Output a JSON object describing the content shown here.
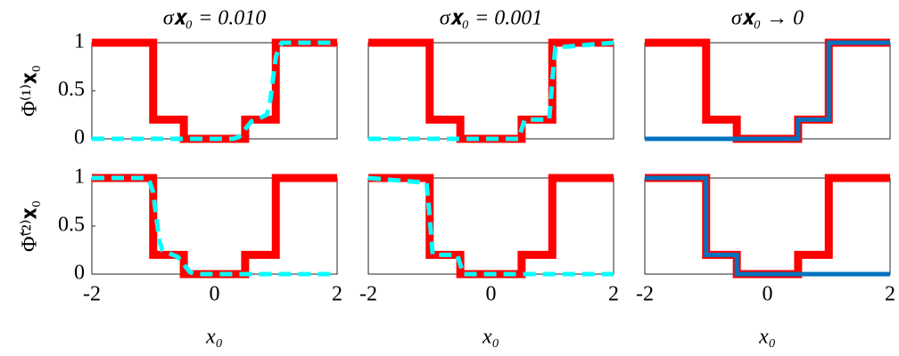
{
  "chart_data": [
    {
      "type": "line",
      "title": "σ𝐱₀ = 0.010",
      "ylabel": "Φ⁽¹⁾𝐱₀",
      "xlim": [
        -2,
        2
      ],
      "ylim": [
        0,
        1
      ],
      "yticks": [
        0,
        0.5,
        1
      ],
      "series": [
        {
          "color": "#ff0000",
          "linestyle": "solid",
          "x": [
            -2,
            -1,
            -1,
            -0.5,
            -0.5,
            0.5,
            0.5,
            1,
            1,
            2
          ],
          "values": [
            1,
            1,
            0.2,
            0.2,
            0,
            0,
            0.2,
            0.2,
            1,
            1
          ]
        },
        {
          "color": "#00ffff",
          "linestyle": "dashed",
          "x": [
            -2,
            0.3,
            0.4,
            0.5,
            0.6,
            0.75,
            0.85,
            0.9,
            0.95,
            1,
            1.05,
            1.1,
            2
          ],
          "values": [
            0,
            0,
            0.02,
            0.1,
            0.18,
            0.22,
            0.25,
            0.35,
            0.6,
            0.85,
            0.95,
            1,
            1
          ]
        }
      ]
    },
    {
      "type": "line",
      "title": "σ𝐱₀ = 0.001",
      "xlim": [
        -2,
        2
      ],
      "ylim": [
        0,
        1
      ],
      "series": [
        {
          "color": "#ff0000",
          "linestyle": "solid",
          "x": [
            -2,
            -1,
            -1,
            -0.5,
            -0.5,
            0.5,
            0.5,
            1,
            1,
            2
          ],
          "values": [
            1,
            1,
            0.2,
            0.2,
            0,
            0,
            0.2,
            0.2,
            1,
            1
          ]
        },
        {
          "color": "#00ffff",
          "linestyle": "dashed",
          "x": [
            -2,
            0.45,
            0.5,
            0.55,
            0.95,
            1,
            1.05,
            2
          ],
          "values": [
            0,
            0,
            0.1,
            0.2,
            0.2,
            0.6,
            0.95,
            1
          ]
        }
      ]
    },
    {
      "type": "line",
      "title": "σ𝐱₀ → 0",
      "xlim": [
        -2,
        2
      ],
      "ylim": [
        0,
        1
      ],
      "series": [
        {
          "color": "#ff0000",
          "linestyle": "solid",
          "x": [
            -2,
            -1,
            -1,
            -0.5,
            -0.5,
            0.5,
            0.5,
            1,
            1,
            2
          ],
          "values": [
            1,
            1,
            0.2,
            0.2,
            0,
            0,
            0.2,
            0.2,
            1,
            1
          ]
        },
        {
          "color": "#0072bd",
          "linestyle": "solid",
          "x": [
            -2,
            0.5,
            0.5,
            1,
            1,
            2
          ],
          "values": [
            0,
            0,
            0.2,
            0.2,
            1,
            1
          ]
        }
      ]
    },
    {
      "type": "line",
      "ylabel": "Φ̃⁽²⁾𝐱₀",
      "xlabel": "x₀",
      "xlim": [
        -2,
        2
      ],
      "ylim": [
        0,
        1
      ],
      "xticks": [
        -2,
        0,
        2
      ],
      "yticks": [
        0,
        0.5,
        1
      ],
      "series": [
        {
          "color": "#ff0000",
          "linestyle": "solid",
          "x": [
            -2,
            -1,
            -1,
            -0.5,
            -0.5,
            0.5,
            0.5,
            1,
            1,
            2
          ],
          "values": [
            1,
            1,
            0.2,
            0.2,
            0,
            0,
            0.2,
            0.2,
            1,
            1
          ]
        },
        {
          "color": "#00ffff",
          "linestyle": "dashed",
          "x": [
            -2,
            -1.1,
            -1.05,
            -1,
            -0.95,
            -0.9,
            -0.85,
            -0.75,
            -0.6,
            -0.5,
            -0.4,
            -0.3,
            2
          ],
          "values": [
            1,
            1,
            0.95,
            0.85,
            0.6,
            0.35,
            0.25,
            0.22,
            0.18,
            0.1,
            0.02,
            0,
            0
          ]
        }
      ]
    },
    {
      "type": "line",
      "xlabel": "x₀",
      "xlim": [
        -2,
        2
      ],
      "ylim": [
        0,
        1
      ],
      "xticks": [
        -2,
        0,
        2
      ],
      "series": [
        {
          "color": "#ff0000",
          "linestyle": "solid",
          "x": [
            -2,
            -1,
            -1,
            -0.5,
            -0.5,
            0.5,
            0.5,
            1,
            1,
            2
          ],
          "values": [
            1,
            1,
            0.2,
            0.2,
            0,
            0,
            0.2,
            0.2,
            1,
            1
          ]
        },
        {
          "color": "#00ffff",
          "linestyle": "dashed",
          "x": [
            -2,
            -1.05,
            -1,
            -0.95,
            -0.55,
            -0.5,
            -0.45,
            2
          ],
          "values": [
            1,
            0.95,
            0.6,
            0.2,
            0.2,
            0.1,
            0,
            0
          ]
        }
      ]
    },
    {
      "type": "line",
      "xlabel": "x₀",
      "xlim": [
        -2,
        2
      ],
      "ylim": [
        0,
        1
      ],
      "xticks": [
        -2,
        0,
        2
      ],
      "series": [
        {
          "color": "#ff0000",
          "linestyle": "solid",
          "x": [
            -2,
            -1,
            -1,
            -0.5,
            -0.5,
            0.5,
            0.5,
            1,
            1,
            2
          ],
          "values": [
            1,
            1,
            0.2,
            0.2,
            0,
            0,
            0.2,
            0.2,
            1,
            1
          ]
        },
        {
          "color": "#0072bd",
          "linestyle": "solid",
          "x": [
            -2,
            -1,
            -1,
            -0.5,
            -0.5,
            2
          ],
          "values": [
            1,
            1,
            0.2,
            0.2,
            0,
            0
          ]
        }
      ]
    }
  ]
}
